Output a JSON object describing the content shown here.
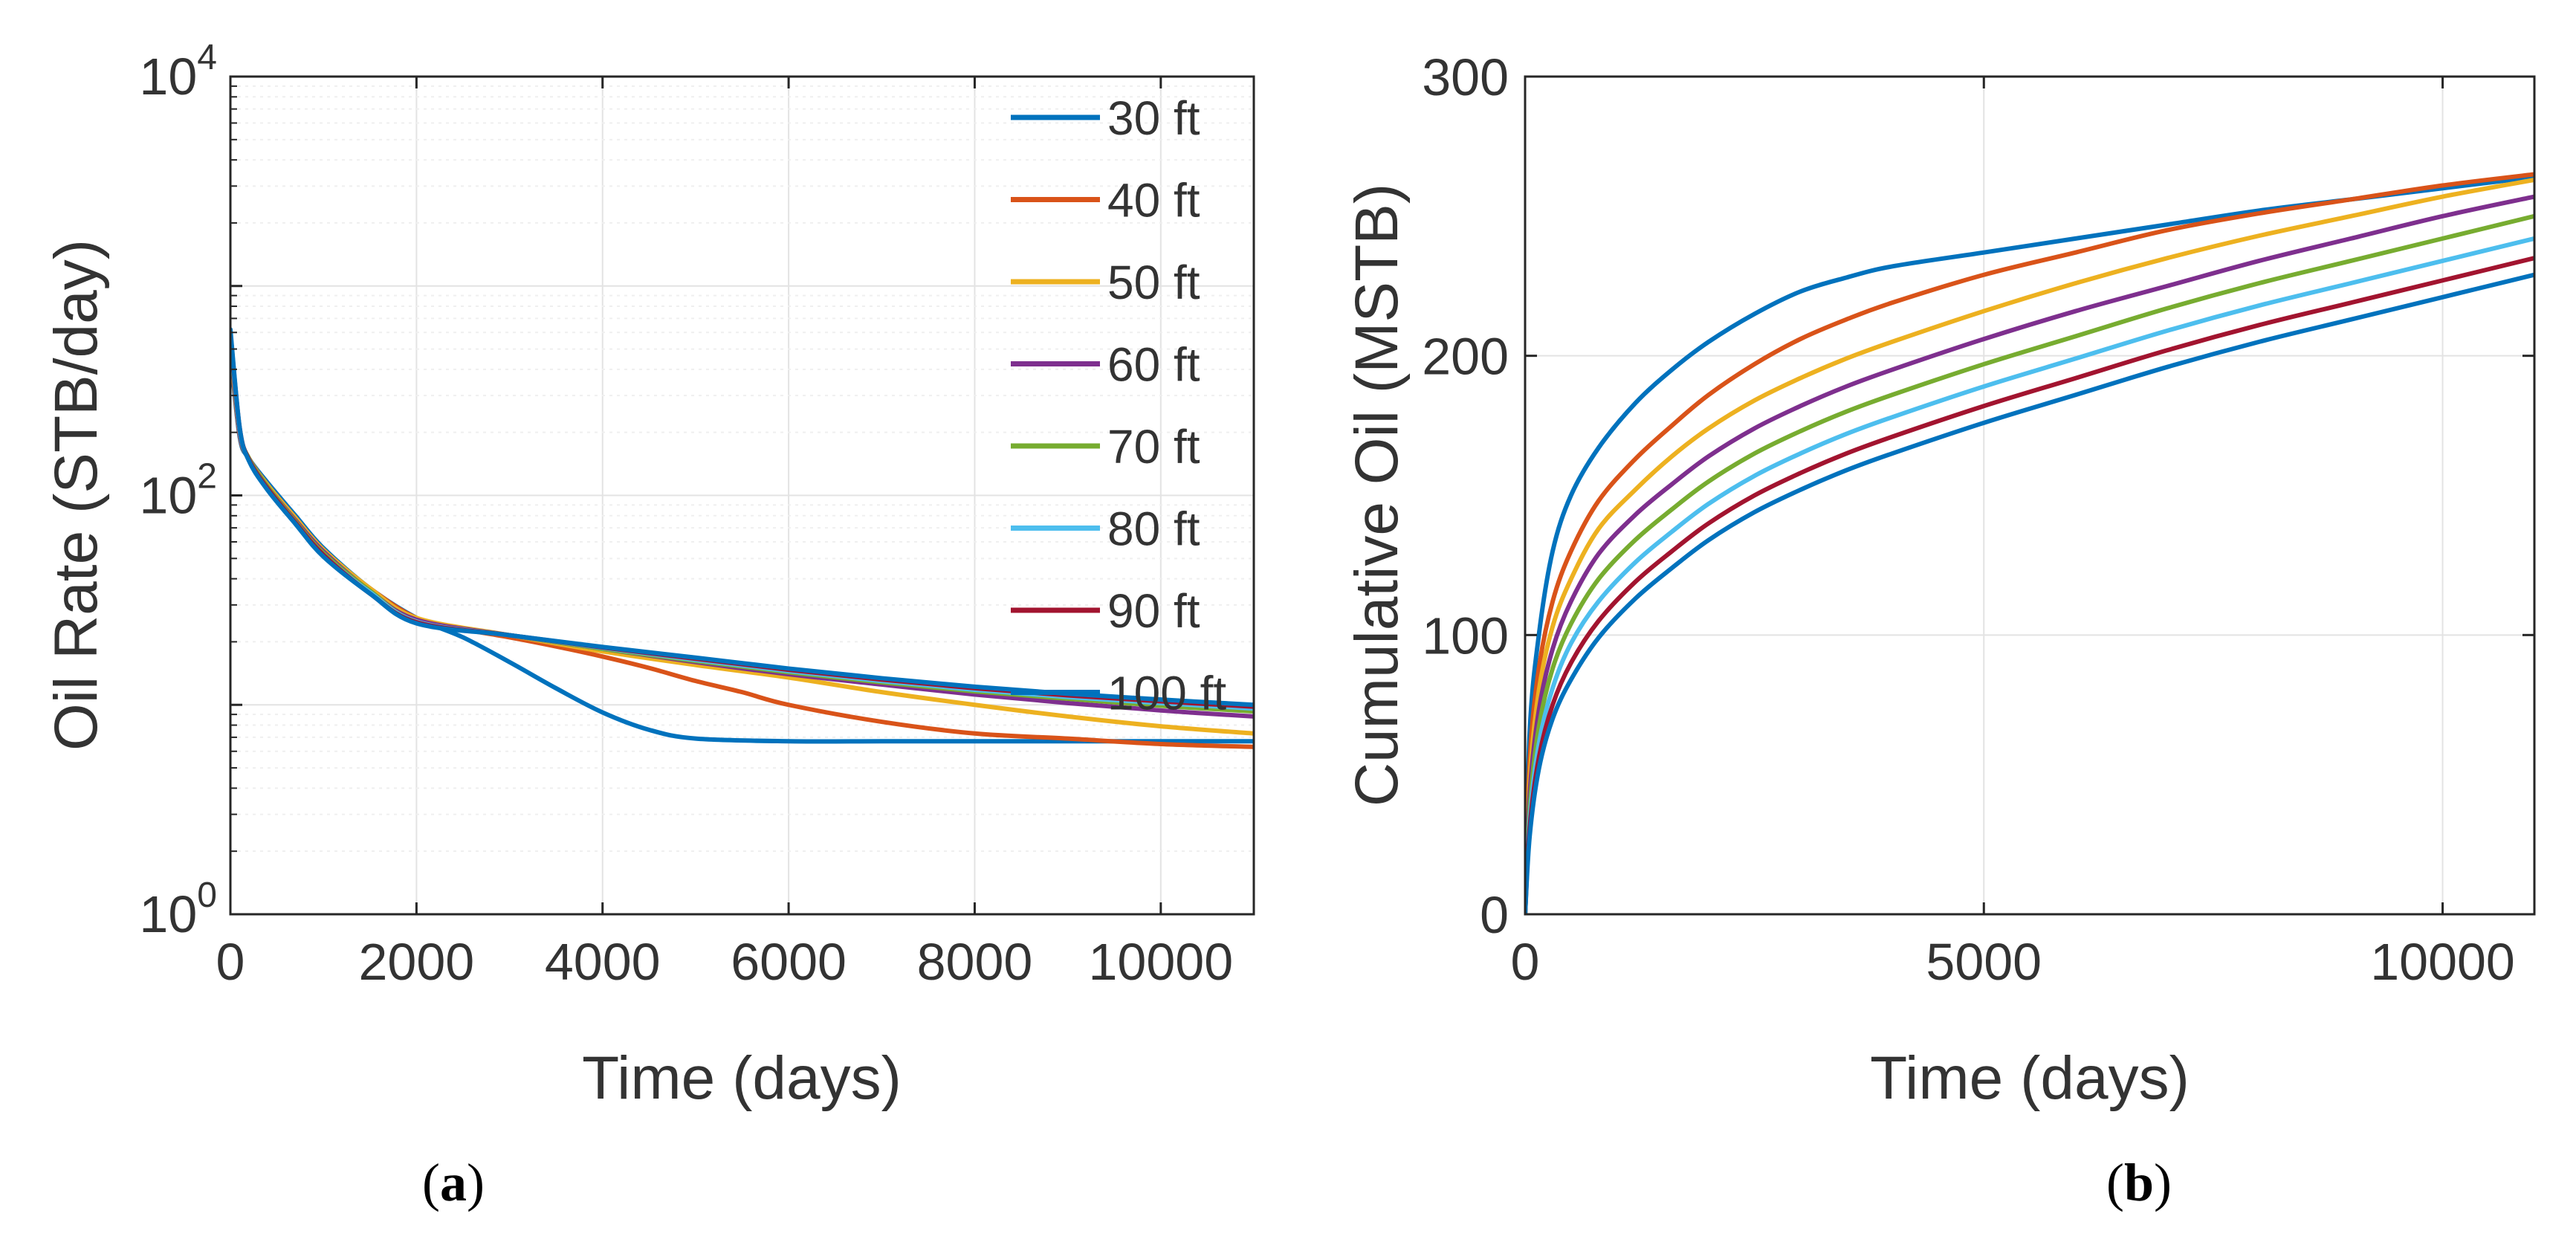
{
  "chart_data": [
    {
      "type": "line",
      "panel_label": {
        "open": "(",
        "letter": "a",
        "close": ")"
      },
      "xlabel": "Time (days)",
      "ylabel": "Oil Rate (STB/day)",
      "yscale": "log",
      "xlim": [
        0,
        11000
      ],
      "ylim": [
        1,
        10000
      ],
      "xticks": [
        0,
        2000,
        4000,
        6000,
        8000,
        10000
      ],
      "xtick_labels": [
        "0",
        "2000",
        "4000",
        "6000",
        "8000",
        "10000"
      ],
      "yticks": [
        1,
        100,
        10000
      ],
      "ytick_labels": [
        {
          "base": "10",
          "exp": "0"
        },
        {
          "base": "10",
          "exp": "2"
        },
        {
          "base": "10",
          "exp": "4"
        }
      ],
      "grid": true,
      "legend_position": "top-right",
      "series": [
        {
          "name": "30 ft",
          "color": "#0072BD",
          "x": [
            0,
            100,
            200,
            400,
            700,
            1000,
            1500,
            2000,
            2500,
            3000,
            3500,
            4000,
            4500,
            5000,
            6000,
            7000,
            8000,
            9000,
            10000,
            11000
          ],
          "y": [
            480,
            190,
            150,
            115,
            80,
            56,
            36,
            26,
            21,
            16,
            12,
            9.2,
            7.6,
            6.9,
            6.7,
            6.7,
            6.7,
            6.7,
            6.7,
            6.7
          ]
        },
        {
          "name": "40 ft",
          "color": "#D95319",
          "x": [
            0,
            100,
            200,
            400,
            700,
            1000,
            1500,
            2000,
            2500,
            3000,
            3500,
            4000,
            4500,
            5000,
            5500,
            6000,
            7000,
            8000,
            9000,
            10000,
            11000
          ],
          "y": [
            500,
            195,
            150,
            112,
            78,
            55,
            36,
            26,
            23,
            21,
            19,
            17,
            15,
            13,
            11.5,
            10,
            8.3,
            7.3,
            6.9,
            6.5,
            6.3
          ]
        },
        {
          "name": "50 ft",
          "color": "#EDB120",
          "x": [
            0,
            100,
            200,
            400,
            700,
            1000,
            1500,
            2000,
            3000,
            4000,
            5000,
            6000,
            7000,
            8000,
            9000,
            10000,
            11000
          ],
          "y": [
            520,
            200,
            150,
            112,
            78,
            55,
            36,
            26,
            21.5,
            18,
            15.5,
            13.5,
            11.5,
            10,
            8.8,
            7.9,
            7.3
          ]
        },
        {
          "name": "60 ft",
          "color": "#7E2F8E",
          "x": [
            0,
            100,
            200,
            400,
            700,
            1000,
            1500,
            2000,
            3000,
            4000,
            5000,
            6000,
            7000,
            8000,
            9000,
            10000,
            11000
          ],
          "y": [
            540,
            200,
            150,
            110,
            76,
            54,
            35,
            25.5,
            21.5,
            18.5,
            16,
            14,
            12.5,
            11.2,
            10.2,
            9.4,
            8.8
          ]
        },
        {
          "name": "70 ft",
          "color": "#77AC30",
          "x": [
            0,
            100,
            200,
            400,
            700,
            1000,
            1500,
            2000,
            3000,
            4000,
            5000,
            6000,
            7000,
            8000,
            9000,
            10000,
            11000
          ],
          "y": [
            560,
            205,
            150,
            110,
            75,
            53,
            35,
            25,
            21.5,
            18.5,
            16.2,
            14.3,
            12.8,
            11.6,
            10.7,
            9.9,
            9.3
          ]
        },
        {
          "name": "80 ft",
          "color": "#4DBEEE",
          "x": [
            0,
            100,
            200,
            400,
            700,
            1000,
            1500,
            2000,
            3000,
            4000,
            5000,
            6000,
            7000,
            8000,
            9000,
            10000,
            11000
          ],
          "y": [
            580,
            205,
            148,
            108,
            74,
            52,
            34.5,
            25,
            21.5,
            18.7,
            16.4,
            14.5,
            13.0,
            11.8,
            10.9,
            10.2,
            9.6
          ]
        },
        {
          "name": "90 ft",
          "color": "#A2142F",
          "x": [
            0,
            100,
            200,
            400,
            700,
            1000,
            1500,
            2000,
            3000,
            4000,
            5000,
            6000,
            7000,
            8000,
            9000,
            10000,
            11000
          ],
          "y": [
            600,
            210,
            148,
            108,
            74,
            52,
            34,
            24.8,
            21.5,
            18.8,
            16.6,
            14.7,
            13.2,
            12.0,
            11.1,
            10.4,
            9.8
          ]
        },
        {
          "name": "100 ft",
          "color": "#0072BD",
          "x": [
            0,
            100,
            200,
            400,
            700,
            1000,
            1500,
            2000,
            3000,
            4000,
            5000,
            6000,
            7000,
            8000,
            9000,
            10000,
            11000
          ],
          "y": [
            620,
            210,
            146,
            106,
            73,
            51,
            34,
            24.5,
            21.5,
            18.9,
            16.8,
            14.9,
            13.4,
            12.2,
            11.3,
            10.6,
            10.0
          ]
        }
      ]
    },
    {
      "type": "line",
      "panel_label": {
        "open": "(",
        "letter": "b",
        "close": ")"
      },
      "xlabel": "Time (days)",
      "ylabel": "Cumulative Oil (MSTB)",
      "yscale": "linear",
      "xlim": [
        0,
        11000
      ],
      "ylim": [
        0,
        300
      ],
      "xticks": [
        0,
        5000,
        10000
      ],
      "xtick_labels": [
        "0",
        "5000",
        "10000"
      ],
      "yticks": [
        0,
        100,
        200,
        300
      ],
      "ytick_labels": [
        "0",
        "100",
        "200",
        "300"
      ],
      "grid": true,
      "series": [
        {
          "name": "30 ft",
          "color": "#0072BD",
          "x": [
            0,
            50,
            150,
            300,
            500,
            800,
            1200,
            1600,
            2000,
            2500,
            3000,
            3500,
            4000,
            5000,
            6000,
            7000,
            8000,
            9000,
            10000,
            11000
          ],
          "y": [
            0,
            65,
            100,
            130,
            150,
            167,
            183,
            195,
            205,
            215,
            223,
            228,
            232,
            237,
            242,
            247,
            252,
            256,
            260,
            264
          ]
        },
        {
          "name": "40 ft",
          "color": "#D95319",
          "x": [
            0,
            50,
            150,
            300,
            500,
            800,
            1200,
            1600,
            2000,
            2500,
            3000,
            3500,
            4000,
            5000,
            6000,
            7000,
            8000,
            9000,
            10000,
            11000
          ],
          "y": [
            0,
            55,
            88,
            112,
            130,
            148,
            163,
            175,
            186,
            197,
            206,
            213,
            219,
            229,
            237,
            245,
            251,
            256,
            261,
            265
          ]
        },
        {
          "name": "50 ft",
          "color": "#EDB120",
          "x": [
            0,
            50,
            150,
            300,
            500,
            800,
            1200,
            1600,
            2000,
            2500,
            3000,
            3500,
            4000,
            5000,
            6000,
            7000,
            8000,
            9000,
            10000,
            11000
          ],
          "y": [
            0,
            48,
            80,
            103,
            120,
            138,
            152,
            164,
            174,
            184,
            192,
            199,
            205,
            216,
            226,
            235,
            243,
            250,
            257,
            263
          ]
        },
        {
          "name": "60 ft",
          "color": "#7E2F8E",
          "x": [
            0,
            50,
            150,
            300,
            500,
            800,
            1200,
            1600,
            2000,
            2500,
            3000,
            3500,
            4000,
            5000,
            6000,
            7000,
            8000,
            9000,
            10000,
            11000
          ],
          "y": [
            0,
            43,
            73,
            95,
            112,
            129,
            143,
            154,
            164,
            174,
            182,
            189,
            195,
            206,
            216,
            225,
            234,
            242,
            250,
            257
          ]
        },
        {
          "name": "70 ft",
          "color": "#77AC30",
          "x": [
            0,
            50,
            150,
            300,
            500,
            800,
            1200,
            1600,
            2000,
            2500,
            3000,
            3500,
            4000,
            5000,
            6000,
            7000,
            8000,
            9000,
            10000,
            11000
          ],
          "y": [
            0,
            38,
            67,
            88,
            104,
            120,
            134,
            145,
            155,
            165,
            173,
            180,
            186,
            197,
            207,
            217,
            226,
            234,
            242,
            250
          ]
        },
        {
          "name": "80 ft",
          "color": "#4DBEEE",
          "x": [
            0,
            50,
            150,
            300,
            500,
            800,
            1200,
            1600,
            2000,
            2500,
            3000,
            3500,
            4000,
            5000,
            6000,
            7000,
            8000,
            9000,
            10000,
            11000
          ],
          "y": [
            0,
            34,
            61,
            81,
            97,
            112,
            126,
            137,
            147,
            157,
            165,
            172,
            178,
            189,
            199,
            209,
            218,
            226,
            234,
            242
          ]
        },
        {
          "name": "90 ft",
          "color": "#A2142F",
          "x": [
            0,
            50,
            150,
            300,
            500,
            800,
            1200,
            1600,
            2000,
            2500,
            3000,
            3500,
            4000,
            5000,
            6000,
            7000,
            8000,
            9000,
            10000,
            11000
          ],
          "y": [
            0,
            31,
            56,
            75,
            90,
            105,
            119,
            130,
            140,
            150,
            158,
            165,
            171,
            182,
            192,
            202,
            211,
            219,
            227,
            235
          ]
        },
        {
          "name": "100 ft",
          "color": "#0072BD",
          "x": [
            0,
            50,
            150,
            300,
            500,
            800,
            1200,
            1600,
            2000,
            2500,
            3000,
            3500,
            4000,
            5000,
            6000,
            7000,
            8000,
            9000,
            10000,
            11000
          ],
          "y": [
            0,
            28,
            52,
            70,
            84,
            99,
            113,
            124,
            134,
            144,
            152,
            159,
            165,
            176,
            186,
            196,
            205,
            213,
            221,
            229
          ]
        }
      ]
    }
  ]
}
